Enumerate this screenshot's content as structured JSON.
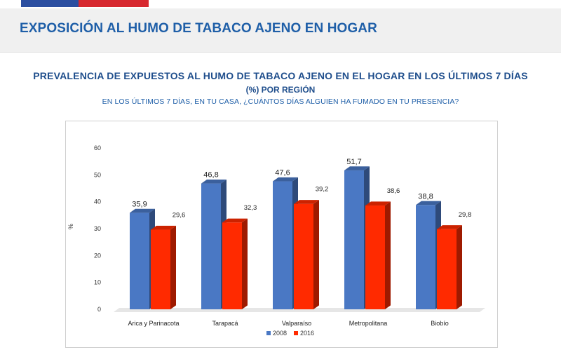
{
  "header": {
    "title": "EXPOSICIÓN AL HUMO DE TABACO AJENO EN HOGAR"
  },
  "chart_data": {
    "type": "bar",
    "title": "PREVALENCIA DE EXPUESTOS AL HUMO DE TABACO AJENO EN EL HOGAR EN LOS ÚLTIMOS 7 DÍAS",
    "subtitle": "(%) POR REGIÓN",
    "question": "EN LOS ÚLTIMOS 7 DÍAS, EN TU CASA, ¿CUÁNTOS DÍAS ALGUIEN HA FUMADO EN TU PRESENCIA?",
    "ylabel": "%",
    "ylim": [
      0,
      60
    ],
    "yticks": [
      0,
      10,
      20,
      30,
      40,
      50,
      60
    ],
    "categories": [
      "Arica y Parinacota",
      "Tarapacá",
      "Valparaíso",
      "Metropolitana",
      "Biobío"
    ],
    "series": [
      {
        "name": "2008",
        "color": "#4a78c4",
        "values": [
          35.9,
          46.8,
          47.6,
          51.7,
          38.8
        ],
        "labels": [
          "35,9",
          "46,8",
          "47,6",
          "51,7",
          "38,8"
        ]
      },
      {
        "name": "2016",
        "color": "#ff2a00",
        "values": [
          29.6,
          32.3,
          39.2,
          38.6,
          29.8
        ],
        "labels": [
          "29,6",
          "32,3",
          "39,2",
          "38,6",
          "29,8"
        ]
      }
    ],
    "legend_position": "bottom",
    "grid": false,
    "style": "3d-bars"
  }
}
